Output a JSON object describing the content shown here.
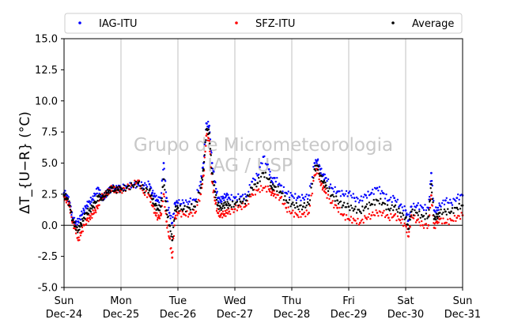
{
  "chart_data": {
    "type": "scatter",
    "title": "",
    "ylabel": "ΔT_{U−R} (°C)",
    "xlabel": "",
    "ylim": [
      -5.0,
      15.0
    ],
    "xlim": [
      0,
      7
    ],
    "yticks": [
      "-5.0",
      "-2.5",
      "0.0",
      "2.5",
      "5.0",
      "7.5",
      "10.0",
      "12.5",
      "15.0"
    ],
    "xticks": [
      {
        "day": "Sun",
        "date": "Dec-24"
      },
      {
        "day": "Mon",
        "date": "Dec-25"
      },
      {
        "day": "Tue",
        "date": "Dec-26"
      },
      {
        "day": "Wed",
        "date": "Dec-27"
      },
      {
        "day": "Thu",
        "date": "Dec-28"
      },
      {
        "day": "Fri",
        "date": "Dec-29"
      },
      {
        "day": "Sat",
        "date": "Dec-30"
      },
      {
        "day": "Sun",
        "date": "Dec-31"
      }
    ],
    "grid": "vertical at day boundaries",
    "legend_placement": "top, above plot",
    "zero_line": true,
    "watermark": [
      "Grupo de Micrometeorologia",
      "IAG / USP"
    ],
    "series": [
      {
        "name": "IAG-ITU",
        "color": "#0000ff",
        "x": [
          0.0,
          0.05,
          0.1,
          0.15,
          0.2,
          0.25,
          0.3,
          0.35,
          0.4,
          0.45,
          0.5,
          0.55,
          0.6,
          0.65,
          0.7,
          0.75,
          0.8,
          0.85,
          0.9,
          0.95,
          1.0,
          1.1,
          1.2,
          1.3,
          1.4,
          1.5,
          1.55,
          1.6,
          1.65,
          1.7,
          1.75,
          1.8,
          1.85,
          1.9,
          1.95,
          2.0,
          2.1,
          2.2,
          2.3,
          2.4,
          2.45,
          2.5,
          2.55,
          2.6,
          2.65,
          2.7,
          2.75,
          2.8,
          2.85,
          2.9,
          3.0,
          3.1,
          3.2,
          3.3,
          3.4,
          3.5,
          3.6,
          3.65,
          3.7,
          3.8,
          3.9,
          4.0,
          4.1,
          4.2,
          4.3,
          4.4,
          4.45,
          4.5,
          4.55,
          4.6,
          4.7,
          4.8,
          4.9,
          5.0,
          5.1,
          5.2,
          5.3,
          5.4,
          5.5,
          5.6,
          5.7,
          5.8,
          5.9,
          6.0,
          6.05,
          6.1,
          6.2,
          6.3,
          6.4,
          6.45,
          6.5,
          6.55,
          6.6,
          6.7,
          6.8,
          6.9,
          7.0
        ],
        "y": [
          2.6,
          2.4,
          1.8,
          0.6,
          0.2,
          0.3,
          0.8,
          1.2,
          1.6,
          1.9,
          2.1,
          2.5,
          3.0,
          2.3,
          2.2,
          2.6,
          2.8,
          3.0,
          2.9,
          3.0,
          3.0,
          3.1,
          3.2,
          3.3,
          3.2,
          3.3,
          2.6,
          2.3,
          2.0,
          2.2,
          5.0,
          2.2,
          1.0,
          0.2,
          1.8,
          1.8,
          1.8,
          1.9,
          2.0,
          3.5,
          5.0,
          8.2,
          8.0,
          5.0,
          3.5,
          2.2,
          2.0,
          2.2,
          2.4,
          2.2,
          2.2,
          2.3,
          2.3,
          3.5,
          4.0,
          5.5,
          4.5,
          3.5,
          3.8,
          3.2,
          2.6,
          2.4,
          2.2,
          2.2,
          2.4,
          5.0,
          5.2,
          4.5,
          4.0,
          3.8,
          3.0,
          2.7,
          2.5,
          2.6,
          2.2,
          2.0,
          2.4,
          2.6,
          3.0,
          2.6,
          2.0,
          2.2,
          1.6,
          1.2,
          0.4,
          1.5,
          1.6,
          1.4,
          1.4,
          4.2,
          1.2,
          1.2,
          1.6,
          2.0,
          1.8,
          2.2,
          2.4
        ]
      },
      {
        "name": "SFZ-ITU",
        "color": "#ff0000",
        "x": [
          0.0,
          0.05,
          0.1,
          0.15,
          0.2,
          0.25,
          0.3,
          0.35,
          0.4,
          0.45,
          0.5,
          0.55,
          0.6,
          0.65,
          0.7,
          0.75,
          0.8,
          0.85,
          0.9,
          0.95,
          1.0,
          1.1,
          1.2,
          1.3,
          1.4,
          1.5,
          1.55,
          1.6,
          1.65,
          1.7,
          1.75,
          1.8,
          1.85,
          1.9,
          1.95,
          2.0,
          2.1,
          2.2,
          2.3,
          2.4,
          2.45,
          2.5,
          2.55,
          2.6,
          2.65,
          2.7,
          2.75,
          2.8,
          2.85,
          2.9,
          3.0,
          3.1,
          3.2,
          3.3,
          3.4,
          3.5,
          3.6,
          3.65,
          3.7,
          3.8,
          3.9,
          4.0,
          4.1,
          4.2,
          4.3,
          4.4,
          4.45,
          4.5,
          4.55,
          4.6,
          4.7,
          4.8,
          4.9,
          5.0,
          5.1,
          5.2,
          5.3,
          5.4,
          5.5,
          5.6,
          5.7,
          5.8,
          5.9,
          6.0,
          6.05,
          6.1,
          6.2,
          6.3,
          6.4,
          6.45,
          6.5,
          6.55,
          6.6,
          6.7,
          6.8,
          6.9,
          7.0
        ],
        "y": [
          2.3,
          2.0,
          1.5,
          0.2,
          -0.3,
          -1.2,
          -0.6,
          0.0,
          0.4,
          0.6,
          0.9,
          1.2,
          1.6,
          2.2,
          2.4,
          2.6,
          2.8,
          3.0,
          2.8,
          2.9,
          2.8,
          3.0,
          3.2,
          3.6,
          2.6,
          2.4,
          1.6,
          1.0,
          0.6,
          0.8,
          2.5,
          0.3,
          -1.0,
          -2.6,
          0.6,
          1.0,
          0.9,
          0.9,
          1.0,
          2.5,
          4.0,
          7.2,
          6.8,
          3.5,
          2.0,
          1.0,
          0.8,
          0.9,
          1.0,
          1.1,
          1.3,
          1.5,
          1.6,
          2.5,
          2.8,
          3.0,
          2.9,
          2.6,
          2.5,
          2.2,
          1.4,
          1.0,
          0.8,
          0.9,
          1.0,
          4.0,
          4.5,
          3.5,
          3.0,
          2.6,
          1.8,
          1.4,
          0.8,
          0.5,
          0.4,
          0.2,
          0.6,
          0.8,
          1.0,
          1.0,
          0.6,
          0.8,
          0.4,
          0.0,
          -0.9,
          0.8,
          0.4,
          0.0,
          0.0,
          2.4,
          -0.2,
          0.3,
          0.5,
          0.2,
          0.4,
          0.6,
          0.8
        ]
      },
      {
        "name": "Average",
        "color": "#000000",
        "x": [
          0.0,
          0.05,
          0.1,
          0.15,
          0.2,
          0.25,
          0.3,
          0.35,
          0.4,
          0.45,
          0.5,
          0.55,
          0.6,
          0.65,
          0.7,
          0.75,
          0.8,
          0.85,
          0.9,
          0.95,
          1.0,
          1.1,
          1.2,
          1.3,
          1.4,
          1.5,
          1.55,
          1.6,
          1.65,
          1.7,
          1.75,
          1.8,
          1.85,
          1.9,
          1.95,
          2.0,
          2.1,
          2.2,
          2.3,
          2.4,
          2.45,
          2.5,
          2.55,
          2.6,
          2.65,
          2.7,
          2.75,
          2.8,
          2.85,
          2.9,
          3.0,
          3.1,
          3.2,
          3.3,
          3.4,
          3.5,
          3.6,
          3.65,
          3.7,
          3.8,
          3.9,
          4.0,
          4.1,
          4.2,
          4.3,
          4.4,
          4.45,
          4.5,
          4.55,
          4.6,
          4.7,
          4.8,
          4.9,
          5.0,
          5.1,
          5.2,
          5.3,
          5.4,
          5.5,
          5.6,
          5.7,
          5.8,
          5.9,
          6.0,
          6.05,
          6.1,
          6.2,
          6.3,
          6.4,
          6.45,
          6.5,
          6.55,
          6.6,
          6.7,
          6.8,
          6.9,
          7.0
        ],
        "y": [
          2.4,
          2.2,
          1.6,
          0.4,
          -0.1,
          -0.4,
          0.1,
          0.6,
          1.0,
          1.2,
          1.5,
          1.8,
          2.3,
          2.2,
          2.3,
          2.6,
          2.8,
          3.0,
          2.8,
          2.9,
          2.9,
          3.0,
          3.2,
          3.4,
          2.9,
          2.8,
          2.1,
          1.6,
          1.3,
          1.5,
          3.7,
          1.2,
          0.0,
          -1.2,
          1.2,
          1.4,
          1.3,
          1.4,
          1.5,
          3.0,
          4.5,
          7.7,
          7.4,
          4.2,
          2.7,
          1.6,
          1.4,
          1.6,
          1.7,
          1.6,
          1.7,
          1.9,
          2.0,
          3.0,
          3.4,
          4.2,
          3.7,
          3.0,
          3.1,
          2.7,
          2.0,
          1.7,
          1.5,
          1.5,
          1.7,
          4.5,
          4.8,
          4.0,
          3.5,
          3.2,
          2.4,
          2.0,
          1.6,
          1.5,
          1.3,
          1.1,
          1.5,
          1.7,
          2.0,
          1.8,
          1.3,
          1.5,
          1.0,
          0.6,
          -0.3,
          1.1,
          1.0,
          0.7,
          0.7,
          3.3,
          0.5,
          0.7,
          1.0,
          1.1,
          1.1,
          1.4,
          1.6
        ]
      }
    ]
  }
}
